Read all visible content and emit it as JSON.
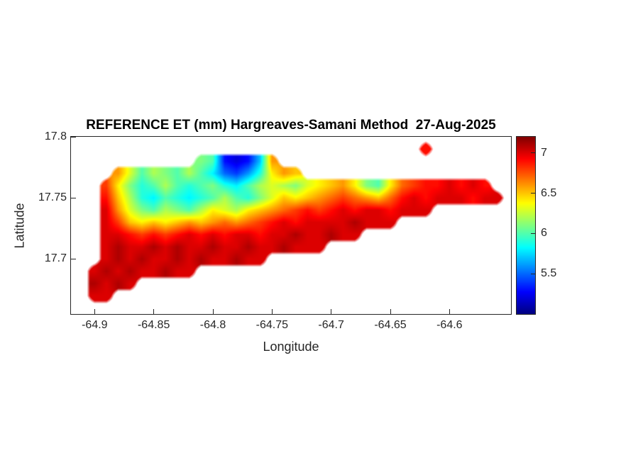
{
  "chart_data": {
    "type": "heatmap",
    "title": "REFERENCE ET (mm) Hargreaves-Samani Method  27-Aug-2025",
    "xlabel": "Longitude",
    "ylabel": "Latitude",
    "xlim": [
      -64.92,
      -64.548
    ],
    "ylim": [
      17.655,
      17.8
    ],
    "xticks": [
      -64.9,
      -64.85,
      -64.8,
      -64.75,
      -64.7,
      -64.65,
      -64.6
    ],
    "xtick_labels": [
      "-64.9",
      "-64.85",
      "-64.8",
      "-64.75",
      "-64.7",
      "-64.65",
      "-64.6"
    ],
    "yticks": [
      17.8,
      17.75,
      17.7
    ],
    "ytick_labels": [
      "17.8",
      "17.75",
      "17.7"
    ],
    "colormap": "jet",
    "clim": [
      5.0,
      7.2
    ],
    "colorbar_ticks": [
      7,
      6.5,
      6,
      5.5
    ],
    "colorbar_tick_labels": [
      "7",
      "6.5",
      "6",
      "5.5"
    ],
    "grid": {
      "lon_start": -64.92,
      "lon_step": 0.01,
      "lat_start": 17.8,
      "lat_step": -0.01,
      "nodata": null,
      "values": [
        [
          null,
          null,
          null,
          null,
          null,
          null,
          null,
          null,
          null,
          null,
          null,
          null,
          null,
          null,
          null,
          null,
          null,
          null,
          null,
          null,
          null,
          null,
          null,
          null,
          null,
          null,
          null,
          null,
          null,
          null,
          null,
          null,
          null,
          null,
          null,
          null,
          null,
          null
        ],
        [
          null,
          null,
          null,
          null,
          null,
          null,
          null,
          null,
          null,
          null,
          null,
          null,
          null,
          null,
          null,
          null,
          null,
          null,
          null,
          null,
          null,
          null,
          null,
          null,
          null,
          null,
          null,
          null,
          null,
          null,
          6.9,
          null,
          null,
          null,
          null,
          null,
          null,
          null
        ],
        [
          null,
          null,
          null,
          null,
          null,
          null,
          null,
          null,
          null,
          null,
          null,
          6.1,
          6.0,
          5.3,
          5.2,
          5.3,
          5.7,
          6.6,
          null,
          null,
          null,
          null,
          null,
          null,
          null,
          null,
          null,
          null,
          null,
          null,
          null,
          null,
          null,
          null,
          null,
          null,
          null,
          null
        ],
        [
          null,
          null,
          null,
          null,
          6.6,
          6.3,
          6.0,
          6.2,
          6.1,
          6.0,
          6.2,
          6.0,
          5.8,
          5.5,
          5.4,
          5.6,
          5.9,
          6.4,
          6.6,
          6.5,
          null,
          null,
          null,
          null,
          null,
          null,
          null,
          null,
          null,
          null,
          null,
          null,
          null,
          null,
          null,
          null,
          null,
          null
        ],
        [
          null,
          null,
          null,
          6.8,
          6.4,
          6.1,
          5.9,
          6.0,
          6.2,
          6.0,
          5.9,
          6.0,
          6.1,
          5.9,
          5.8,
          6.0,
          6.2,
          6.3,
          6.2,
          6.1,
          6.3,
          6.4,
          6.5,
          6.6,
          6.4,
          6.1,
          6.0,
          6.4,
          6.7,
          6.8,
          6.9,
          6.9,
          7.0,
          6.9,
          7.0,
          6.9,
          null,
          null
        ],
        [
          null,
          null,
          null,
          6.9,
          6.5,
          6.2,
          5.9,
          5.8,
          6.0,
          5.9,
          5.8,
          5.9,
          6.0,
          6.2,
          6.0,
          5.9,
          6.1,
          6.3,
          6.5,
          6.4,
          6.5,
          6.6,
          6.7,
          6.8,
          6.7,
          6.6,
          6.5,
          6.7,
          6.9,
          7.0,
          6.9,
          7.0,
          7.0,
          7.0,
          6.9,
          7.0,
          7.0,
          null
        ],
        [
          null,
          null,
          null,
          7.0,
          6.6,
          6.3,
          6.1,
          6.0,
          6.2,
          6.1,
          6.0,
          6.2,
          6.4,
          6.3,
          6.2,
          6.4,
          6.5,
          6.6,
          6.7,
          6.8,
          6.9,
          6.8,
          6.9,
          7.0,
          6.9,
          7.0,
          7.0,
          6.9,
          7.0,
          7.0,
          7.0,
          null,
          null,
          null,
          null,
          null,
          null,
          null
        ],
        [
          null,
          null,
          null,
          7.0,
          6.8,
          6.5,
          6.4,
          6.5,
          6.4,
          6.5,
          6.6,
          6.5,
          6.6,
          6.7,
          6.6,
          6.7,
          6.8,
          6.9,
          7.0,
          6.9,
          7.0,
          7.0,
          7.0,
          7.0,
          7.1,
          7.0,
          7.0,
          7.0,
          null,
          null,
          null,
          null,
          null,
          null,
          null,
          null,
          null,
          null
        ],
        [
          null,
          null,
          null,
          7.0,
          7.0,
          6.9,
          6.8,
          6.9,
          6.8,
          6.9,
          7.0,
          6.9,
          7.0,
          6.9,
          7.0,
          7.0,
          6.9,
          7.0,
          7.0,
          7.1,
          7.0,
          7.0,
          7.1,
          7.0,
          7.0,
          null,
          null,
          null,
          null,
          null,
          null,
          null,
          null,
          null,
          null,
          null,
          null,
          null
        ],
        [
          null,
          null,
          null,
          7.0,
          7.1,
          7.0,
          7.0,
          7.1,
          7.0,
          7.1,
          7.0,
          7.0,
          7.1,
          7.0,
          7.0,
          7.1,
          7.0,
          7.0,
          7.1,
          7.0,
          7.0,
          7.0,
          null,
          null,
          null,
          null,
          null,
          null,
          null,
          null,
          null,
          null,
          null,
          null,
          null,
          null,
          null,
          null
        ],
        [
          null,
          null,
          null,
          7.0,
          7.1,
          7.0,
          7.1,
          7.0,
          7.0,
          7.1,
          7.0,
          7.1,
          7.0,
          7.0,
          7.1,
          7.0,
          7.0,
          null,
          null,
          null,
          null,
          null,
          null,
          null,
          null,
          null,
          null,
          null,
          null,
          null,
          null,
          null,
          null,
          null,
          null,
          null,
          null,
          null
        ],
        [
          null,
          null,
          7.0,
          7.1,
          7.0,
          7.1,
          7.0,
          7.0,
          7.1,
          7.0,
          7.0,
          null,
          null,
          null,
          null,
          null,
          null,
          null,
          null,
          null,
          null,
          null,
          null,
          null,
          null,
          null,
          null,
          null,
          null,
          null,
          null,
          null,
          null,
          null,
          null,
          null,
          null,
          null
        ],
        [
          null,
          null,
          7.1,
          7.0,
          7.1,
          7.0,
          null,
          null,
          null,
          null,
          null,
          null,
          null,
          null,
          null,
          null,
          null,
          null,
          null,
          null,
          null,
          null,
          null,
          null,
          null,
          null,
          null,
          null,
          null,
          null,
          null,
          null,
          null,
          null,
          null,
          null,
          null,
          null
        ],
        [
          null,
          null,
          7.0,
          7.0,
          null,
          null,
          null,
          null,
          null,
          null,
          null,
          null,
          null,
          null,
          null,
          null,
          null,
          null,
          null,
          null,
          null,
          null,
          null,
          null,
          null,
          null,
          null,
          null,
          null,
          null,
          null,
          null,
          null,
          null,
          null,
          null,
          null,
          null
        ],
        [
          null,
          null,
          null,
          null,
          null,
          null,
          null,
          null,
          null,
          null,
          null,
          null,
          null,
          null,
          null,
          null,
          null,
          null,
          null,
          null,
          null,
          null,
          null,
          null,
          null,
          null,
          null,
          null,
          null,
          null,
          null,
          null,
          null,
          null,
          null,
          null,
          null,
          null
        ]
      ]
    }
  }
}
